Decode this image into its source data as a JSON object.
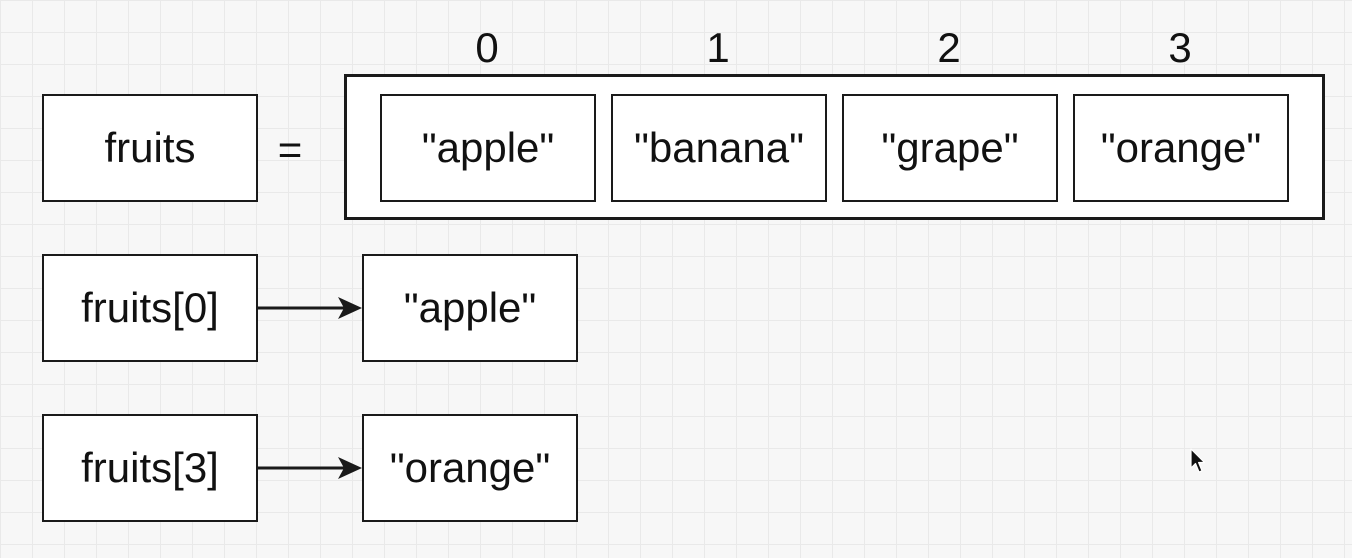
{
  "variable": {
    "name": "fruits",
    "operator": "="
  },
  "array": {
    "indices": [
      "0",
      "1",
      "2",
      "3"
    ],
    "elements": [
      "\"apple\"",
      "\"banana\"",
      "\"grape\"",
      "\"orange\""
    ]
  },
  "accesses": [
    {
      "expression": "fruits[0]",
      "result": "\"apple\""
    },
    {
      "expression": "fruits[3]",
      "result": "\"orange\""
    }
  ],
  "icons": {
    "cursor": "mouse-pointer-icon",
    "arrow": "arrow-right-icon"
  },
  "colors": {
    "stroke": "#1a1a1a",
    "background": "#f7f7f7",
    "grid": "#e9e9e9"
  }
}
